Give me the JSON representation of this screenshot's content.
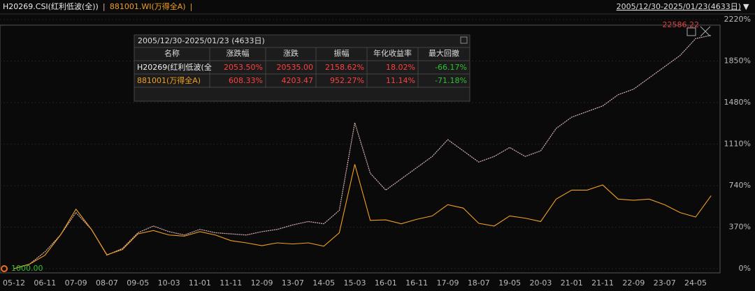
{
  "chart_data": {
    "type": "line",
    "period": "2005/12/30-2025/01/23(4633日)",
    "annotations": [
      "22586.22",
      "1000.00"
    ],
    "categories": [
      "05-12",
      null,
      "06-11",
      null,
      "07-09",
      null,
      "08-07",
      null,
      "09-05",
      null,
      "10-03",
      null,
      "11-01",
      null,
      "11-11",
      null,
      "12-09",
      null,
      "13-07",
      null,
      "14-05",
      null,
      "15-03",
      null,
      "16-01",
      null,
      "16-11",
      null,
      "17-09",
      null,
      "18-07",
      null,
      "19-05",
      null,
      "20-03",
      null,
      "21-01",
      null,
      "21-11",
      null,
      "22-09",
      null,
      "23-07",
      null,
      "24-05",
      null
    ],
    "series": [
      {
        "name": "H20269.CSI(红利低波(全))",
        "color": "#d9b3b3",
        "values": [
          0,
          40,
          150,
          300,
          500,
          350,
          120,
          180,
          320,
          380,
          330,
          300,
          350,
          320,
          310,
          300,
          330,
          350,
          390,
          420,
          400,
          520,
          1300,
          850,
          700,
          800,
          900,
          1000,
          1150,
          1050,
          950,
          1000,
          1080,
          1000,
          1050,
          1250,
          1350,
          1400,
          1450,
          1550,
          1600,
          1700,
          1800,
          1900,
          2050,
          2080
        ]
      },
      {
        "name": "881001.WI(万得全A)",
        "color": "#f0a020",
        "values": [
          0,
          40,
          120,
          300,
          530,
          350,
          124,
          170,
          310,
          340,
          300,
          290,
          330,
          300,
          250,
          230,
          205,
          230,
          220,
          230,
          200,
          320,
          930,
          430,
          435,
          400,
          440,
          470,
          570,
          540,
          404,
          380,
          470,
          450,
          420,
          620,
          700,
          700,
          746,
          620,
          610,
          620,
          570,
          500,
          460,
          650
        ]
      }
    ],
    "ylim": [
      0,
      2220
    ],
    "yticks": [
      {
        "value": 0,
        "label": "0%"
      },
      {
        "value": 370,
        "label": "370%"
      },
      {
        "value": 740,
        "label": "740%"
      },
      {
        "value": 1110,
        "label": "1110%"
      },
      {
        "value": 1480,
        "label": "1480%"
      },
      {
        "value": 1850,
        "label": "1850%"
      },
      {
        "value": 2220,
        "label": "2220%"
      }
    ]
  },
  "table": {
    "title": "2005/12/30-2025/01/23 (4633日)",
    "columns": [
      "名称",
      "涨跌幅",
      "涨跌",
      "振幅",
      "年化收益率",
      "最大回撤"
    ],
    "rows": [
      [
        "H20269(红利低波(全",
        "2053.50%",
        "20535.00",
        "2158.62%",
        "18.02%",
        "-66.17%"
      ],
      [
        "881001(万得全A)",
        "608.33%",
        "4203.47",
        "952.27%",
        "11.14%",
        "-71.18%"
      ]
    ]
  }
}
